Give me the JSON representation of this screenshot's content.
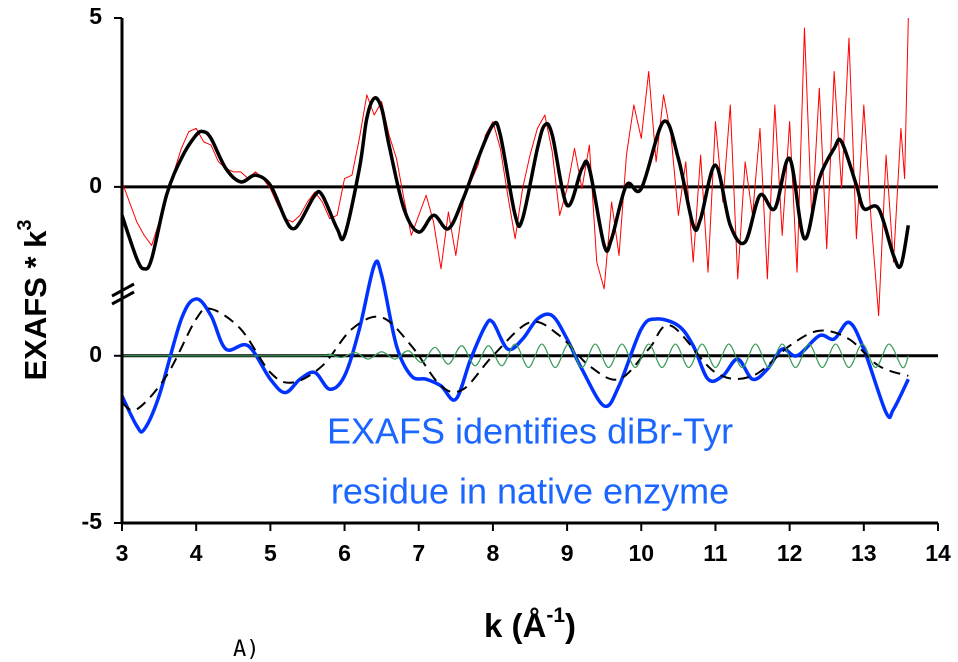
{
  "chart_data": {
    "type": "line",
    "y_label": "EXAFS * k",
    "y_label_sup": "3",
    "x_label": "k (Å",
    "x_label_sup": "-1",
    "x_label_end": ")",
    "annotation": [
      "EXAFS identifies diBr-Tyr",
      "residue in native enzyme"
    ],
    "panel_label": "A)",
    "xlim": [
      3,
      14
    ],
    "xticks": [
      3,
      4,
      5,
      6,
      7,
      8,
      9,
      10,
      11,
      12,
      13,
      14
    ],
    "ylim": [
      -5,
      10.1
    ],
    "yticks": [
      {
        "value": -5,
        "label": "-5"
      },
      0,
      {
        "value": 5.05,
        "label": "0"
      },
      {
        "value": 10.1,
        "label": "5"
      }
    ],
    "reference_lines": [
      0,
      5.05
    ],
    "series": [
      {
        "color": "#ff0000",
        "width": 1,
        "x": [
          3.0,
          3.1,
          3.2,
          3.3,
          3.4,
          3.5,
          3.6,
          3.7,
          3.8,
          3.9,
          4.0,
          4.1,
          4.2,
          4.3,
          4.4,
          4.5,
          4.6,
          4.7,
          4.8,
          4.9,
          5.0,
          5.1,
          5.2,
          5.3,
          5.4,
          5.5,
          5.6,
          5.7,
          5.8,
          5.9,
          6.0,
          6.1,
          6.2,
          6.3,
          6.4,
          6.5,
          6.6,
          6.7,
          6.8,
          6.9,
          7.0,
          7.1,
          7.2,
          7.3,
          7.4,
          7.5,
          7.6,
          7.7,
          7.8,
          7.9,
          8.0,
          8.1,
          8.2,
          8.3,
          8.4,
          8.5,
          8.6,
          8.7,
          8.8,
          8.9,
          9.0,
          9.1,
          9.2,
          9.3,
          9.4,
          9.5,
          9.6,
          9.7,
          9.8,
          9.9,
          10.0,
          10.1,
          10.2,
          10.3,
          10.4,
          10.5,
          10.6,
          10.7,
          10.8,
          10.9,
          11.0,
          11.1,
          11.2,
          11.3,
          11.4,
          11.5,
          11.6,
          11.7,
          11.8,
          11.9,
          12.0,
          12.1,
          12.2,
          12.3,
          12.4,
          12.5,
          12.6,
          12.7,
          12.8,
          12.9,
          13.0,
          13.1,
          13.2,
          13.3,
          13.4,
          13.5,
          13.55,
          13.6
        ],
        "values": [
          5.2,
          4.6,
          4.0,
          3.6,
          3.3,
          4.0,
          4.9,
          5.5,
          6.2,
          6.7,
          6.8,
          6.4,
          6.3,
          5.8,
          5.6,
          5.5,
          5.5,
          5.3,
          5.5,
          5.3,
          5.0,
          4.5,
          4.1,
          4.0,
          4.2,
          4.6,
          4.9,
          4.6,
          4.1,
          4.2,
          5.3,
          5.4,
          6.5,
          7.8,
          7.2,
          7.6,
          6.6,
          5.9,
          4.7,
          3.6,
          4.2,
          4.8,
          4.0,
          2.6,
          4.3,
          3.0,
          4.6,
          5.2,
          5.7,
          6.6,
          7.0,
          6.2,
          4.8,
          3.5,
          5.0,
          6.0,
          6.8,
          7.2,
          6.1,
          4.2,
          5.0,
          6.2,
          5.0,
          6.3,
          2.8,
          2.0,
          4.6,
          3.0,
          6.0,
          7.5,
          6.5,
          8.5,
          5.8,
          7.8,
          6.6,
          4.2,
          5.8,
          2.8,
          6.0,
          2.5,
          7.0,
          4.6,
          7.5,
          2.3,
          5.8,
          4.2,
          6.8,
          2.3,
          7.5,
          3.6,
          7.0,
          2.5,
          9.8,
          4.0,
          8.0,
          3.2,
          8.5,
          5.0,
          9.5,
          3.5,
          7.5,
          4.0,
          1.2,
          6.0,
          2.8,
          6.8,
          5.3,
          10.1
        ]
      },
      {
        "color": "#000000",
        "width": 3.5,
        "smooth": true,
        "x": [
          3.0,
          3.2,
          3.3,
          3.4,
          3.6,
          3.8,
          4.0,
          4.1,
          4.2,
          4.4,
          4.6,
          4.8,
          5.0,
          5.2,
          5.3,
          5.4,
          5.6,
          5.7,
          5.9,
          6.0,
          6.2,
          6.3,
          6.4,
          6.5,
          6.6,
          6.8,
          7.0,
          7.2,
          7.4,
          7.6,
          7.8,
          8.0,
          8.1,
          8.3,
          8.4,
          8.6,
          8.7,
          8.8,
          9.0,
          9.2,
          9.3,
          9.5,
          9.6,
          9.8,
          10.0,
          10.3,
          10.5,
          10.7,
          10.8,
          11.0,
          11.2,
          11.4,
          11.6,
          11.8,
          12.0,
          12.2,
          12.4,
          12.6,
          12.7,
          12.9,
          13.0,
          13.2,
          13.4,
          13.5,
          13.6
        ],
        "values": [
          4.2,
          2.9,
          2.6,
          2.9,
          4.8,
          5.9,
          6.6,
          6.7,
          6.5,
          5.6,
          5.2,
          5.4,
          5.1,
          4.1,
          3.8,
          4.0,
          4.8,
          4.8,
          3.8,
          3.6,
          5.6,
          7.1,
          7.7,
          7.4,
          6.3,
          4.4,
          3.7,
          4.2,
          3.8,
          4.7,
          5.9,
          6.9,
          6.6,
          4.2,
          4.1,
          6.2,
          6.9,
          6.6,
          4.5,
          5.6,
          5.6,
          3.3,
          3.5,
          5.1,
          5.0,
          7.0,
          5.9,
          3.9,
          4.1,
          5.7,
          3.9,
          3.4,
          4.8,
          4.4,
          5.9,
          3.5,
          5.3,
          6.2,
          6.4,
          5.1,
          4.4,
          4.4,
          3.0,
          2.7,
          3.9
        ]
      },
      {
        "color": "#0033ff",
        "width": 3.5,
        "smooth": true,
        "x": [
          3.0,
          3.2,
          3.3,
          3.5,
          3.8,
          4.0,
          4.2,
          4.4,
          4.7,
          5.0,
          5.2,
          5.4,
          5.6,
          5.8,
          6.0,
          6.2,
          6.4,
          6.5,
          6.7,
          6.9,
          7.1,
          7.3,
          7.5,
          7.7,
          7.9,
          8.0,
          8.2,
          8.4,
          8.6,
          8.8,
          9.0,
          9.2,
          9.5,
          9.7,
          10.0,
          10.2,
          10.5,
          10.7,
          10.9,
          11.1,
          11.3,
          11.5,
          11.7,
          11.9,
          12.1,
          12.4,
          12.6,
          12.8,
          13.0,
          13.3,
          13.4,
          13.6
        ],
        "values": [
          -1.2,
          -2.1,
          -2.2,
          -1.2,
          1.1,
          1.7,
          1.2,
          0.2,
          0.3,
          -0.7,
          -1.1,
          -0.7,
          -0.5,
          -1.0,
          -0.6,
          0.8,
          2.7,
          2.4,
          0.3,
          -0.6,
          -0.7,
          -0.9,
          -1.3,
          -0.1,
          0.9,
          1.0,
          0.2,
          0.5,
          1.1,
          1.2,
          0.5,
          -0.4,
          -1.5,
          -0.9,
          0.8,
          1.1,
          0.9,
          0.3,
          -0.7,
          -0.6,
          -0.1,
          -0.7,
          -0.4,
          0.2,
          0.0,
          0.6,
          0.5,
          1.0,
          0.2,
          -1.7,
          -1.6,
          -0.7
        ]
      },
      {
        "color": "#000000",
        "width": 2,
        "dash": "11,7",
        "smooth": true,
        "x": [
          3.0,
          3.2,
          3.6,
          4.0,
          4.2,
          4.6,
          5.0,
          5.3,
          5.7,
          6.1,
          6.5,
          6.9,
          7.3,
          7.6,
          8.0,
          8.5,
          8.9,
          9.3,
          9.7,
          10.1,
          10.4,
          11.0,
          11.5,
          12.0,
          12.4,
          12.8,
          13.2,
          13.6
        ],
        "values": [
          -1.4,
          -1.6,
          -0.6,
          1.1,
          1.4,
          0.8,
          -0.5,
          -0.8,
          -0.3,
          0.8,
          1.15,
          0.3,
          -0.9,
          -1.0,
          0.0,
          1.0,
          0.6,
          -0.3,
          -0.7,
          0.2,
          0.9,
          -0.5,
          -0.6,
          0.3,
          0.75,
          0.5,
          -0.3,
          -0.6
        ]
      },
      {
        "color": "#3a9a5a",
        "width": 1.2,
        "smooth": true,
        "x": [
          3.0,
          5.6,
          5.78,
          5.96,
          6.14,
          6.32,
          6.5,
          6.68,
          6.86,
          7.04,
          7.22,
          7.4,
          7.58,
          7.76,
          7.94,
          8.12,
          8.3,
          8.48,
          8.66,
          8.84,
          9.02,
          9.2,
          9.38,
          9.56,
          9.74,
          9.92,
          10.1,
          10.28,
          10.46,
          10.64,
          10.82,
          11.0,
          11.18,
          11.36,
          11.54,
          11.72,
          11.9,
          12.08,
          12.26,
          12.44,
          12.62,
          12.8,
          12.98,
          13.16,
          13.34,
          13.52,
          13.6
        ],
        "values": [
          0,
          0,
          0.05,
          -0.05,
          0.1,
          -0.1,
          0.12,
          -0.1,
          0.15,
          -0.2,
          0.25,
          -0.25,
          0.3,
          -0.3,
          0.3,
          -0.3,
          0.35,
          -0.35,
          0.35,
          -0.35,
          0.35,
          -0.35,
          0.35,
          -0.35,
          0.35,
          -0.35,
          0.35,
          -0.35,
          0.35,
          -0.35,
          0.35,
          -0.35,
          0.35,
          -0.35,
          0.35,
          -0.35,
          0.35,
          -0.35,
          0.35,
          -0.35,
          0.35,
          -0.35,
          0.35,
          -0.35,
          0.35,
          -0.35,
          0
        ]
      }
    ]
  }
}
